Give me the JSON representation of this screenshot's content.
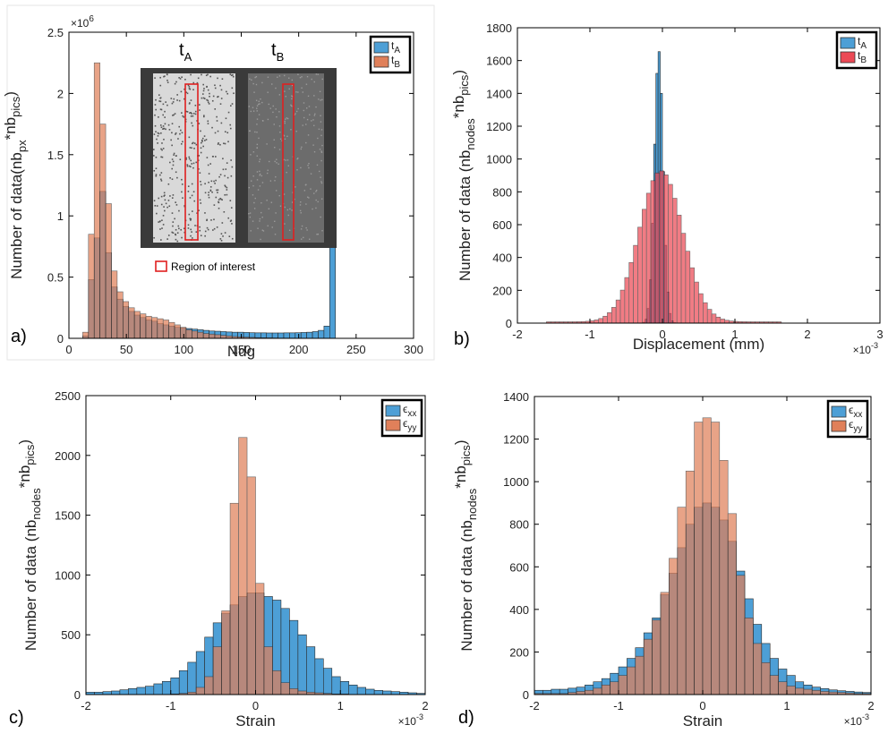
{
  "colors": {
    "blue": "#4d9fd6",
    "orange": "#e0805a",
    "red": "#ec4a56",
    "brown": "#a86848"
  },
  "chart_data": [
    {
      "panel": "a)",
      "type": "bar",
      "xlabel": "Ndg",
      "ylabel_parts": [
        "Number of data(nb",
        "px",
        "*nb",
        "pics",
        ")"
      ],
      "xlim": [
        0,
        300
      ],
      "ylim": [
        0,
        2.5
      ],
      "y_multiplier": "×10",
      "y_multiplier_exp": "6",
      "xticks": [
        0,
        50,
        100,
        150,
        200,
        250,
        300
      ],
      "yticks": [
        0,
        0.5,
        1,
        1.5,
        2,
        2.5
      ],
      "bin_start": 12,
      "bin_width": 5,
      "series": [
        {
          "legend_main": "t",
          "legend_sub": "A",
          "color": "#4d9fd6",
          "values": [
            0.02,
            0.48,
            0.82,
            1.2,
            0.7,
            0.42,
            0.32,
            0.26,
            0.22,
            0.19,
            0.17,
            0.15,
            0.14,
            0.12,
            0.11,
            0.1,
            0.09,
            0.085,
            0.08,
            0.075,
            0.07,
            0.065,
            0.06,
            0.058,
            0.055,
            0.052,
            0.05,
            0.05,
            0.048,
            0.046,
            0.045,
            0.045,
            0.044,
            0.044,
            0.044,
            0.045,
            0.045,
            0.046,
            0.048,
            0.05,
            0.055,
            0.065,
            0.1,
            1.88
          ]
        },
        {
          "legend_main": "t",
          "legend_sub": "B",
          "color": "#e0805a",
          "values": [
            0.05,
            0.85,
            2.25,
            1.75,
            1.1,
            0.55,
            0.38,
            0.3,
            0.25,
            0.22,
            0.2,
            0.18,
            0.17,
            0.16,
            0.15,
            0.13,
            0.11,
            0.09,
            0.07,
            0.06,
            0.05,
            0.04,
            0.035,
            0.03,
            0.025,
            0.02,
            0.015,
            0.012,
            0.01,
            0.008,
            0.006,
            0.005,
            0.004,
            0.003,
            0.002,
            0.002,
            0.002,
            0.001,
            0.001,
            0.001,
            0.001,
            0.001,
            0.001,
            0
          ]
        }
      ],
      "inset": {
        "label_a_main": "t",
        "label_a_sub": "A",
        "label_b_main": "t",
        "label_b_sub": "B",
        "roi_label": "Region of interest"
      }
    },
    {
      "panel": "b)",
      "type": "bar",
      "xlabel": "Displacement (mm)",
      "ylabel_parts": [
        "Number of data (nb",
        "nodes",
        "*nb",
        "pics",
        ")"
      ],
      "xlim": [
        -2,
        3
      ],
      "ylim": [
        0,
        1800
      ],
      "x_multiplier": "×10",
      "x_multiplier_exp": "-3",
      "xticks": [
        -2,
        -1,
        0,
        1,
        2,
        3
      ],
      "yticks": [
        0,
        200,
        400,
        600,
        800,
        1000,
        1200,
        1400,
        1600,
        1800
      ],
      "series": [
        {
          "legend_main": "t",
          "legend_sub": "A",
          "color": "#4d9fd6",
          "center": -0.05,
          "sigma": 0.06,
          "peak": 1660,
          "bin_width": 0.03,
          "range": [
            -0.6,
            0.5
          ]
        },
        {
          "legend_main": "t",
          "legend_sub": "B",
          "color": "#ec4a56",
          "center": -0.02,
          "sigma": 0.3,
          "peak": 920,
          "bin_width": 0.06,
          "range": [
            -1.6,
            1.6
          ]
        }
      ]
    },
    {
      "panel": "c)",
      "type": "bar",
      "xlabel": "Strain",
      "ylabel_parts": [
        "Number of data (nb",
        "nodes",
        "*nb",
        "pics",
        ")"
      ],
      "xlim": [
        -2,
        2
      ],
      "ylim": [
        0,
        2500
      ],
      "x_multiplier": "×10",
      "x_multiplier_exp": "-3",
      "xticks": [
        -2,
        -1,
        0,
        1,
        2
      ],
      "yticks": [
        0,
        500,
        1000,
        1500,
        2000,
        2500
      ],
      "bin_start": -2,
      "bin_width": 0.1,
      "series": [
        {
          "legend_main": "ϵ",
          "legend_sub": "xx",
          "color": "#4d9fd6",
          "values": [
            20,
            20,
            25,
            30,
            40,
            50,
            60,
            70,
            90,
            110,
            140,
            200,
            270,
            360,
            480,
            600,
            680,
            750,
            820,
            850,
            850,
            820,
            790,
            720,
            620,
            500,
            400,
            300,
            220,
            150,
            110,
            80,
            60,
            45,
            35,
            30,
            25,
            20,
            15,
            10
          ]
        },
        {
          "legend_main": "ϵ",
          "legend_sub": "yy",
          "color": "#e0805a",
          "values": [
            0,
            0,
            0,
            0,
            0,
            0,
            0,
            0,
            0,
            0,
            5,
            10,
            20,
            60,
            150,
            400,
            700,
            1600,
            2150,
            1820,
            930,
            400,
            200,
            100,
            50,
            30,
            20,
            15,
            10,
            5,
            5,
            0,
            0,
            0,
            0,
            0,
            0,
            0,
            0,
            0
          ]
        }
      ]
    },
    {
      "panel": "d)",
      "type": "bar",
      "xlabel": "Strain",
      "ylabel_parts": [
        "Number of data (nb",
        "nodes",
        "*nb",
        "pics",
        ")"
      ],
      "xlim": [
        -2,
        2
      ],
      "ylim": [
        0,
        1400
      ],
      "x_multiplier": "×10",
      "x_multiplier_exp": "-3",
      "xticks": [
        -2,
        -1,
        0,
        1,
        2
      ],
      "yticks": [
        0,
        200,
        400,
        600,
        800,
        1000,
        1200,
        1400
      ],
      "bin_start": -2,
      "bin_width": 0.1,
      "series": [
        {
          "legend_main": "ϵ",
          "legend_sub": "xx",
          "color": "#4d9fd6",
          "values": [
            20,
            20,
            25,
            25,
            30,
            35,
            45,
            60,
            75,
            100,
            130,
            170,
            220,
            290,
            360,
            470,
            570,
            690,
            800,
            880,
            900,
            880,
            820,
            720,
            580,
            450,
            330,
            240,
            170,
            120,
            90,
            60,
            45,
            35,
            28,
            22,
            18,
            15,
            12,
            10
          ]
        },
        {
          "legend_main": "ϵ",
          "legend_sub": "yy",
          "color": "#e0805a",
          "values": [
            5,
            5,
            5,
            5,
            10,
            15,
            20,
            30,
            45,
            60,
            90,
            130,
            180,
            260,
            350,
            480,
            640,
            880,
            1050,
            1280,
            1300,
            1280,
            1100,
            850,
            560,
            360,
            240,
            150,
            90,
            60,
            40,
            30,
            25,
            20,
            15,
            12,
            10,
            8,
            5,
            5
          ]
        }
      ]
    }
  ]
}
